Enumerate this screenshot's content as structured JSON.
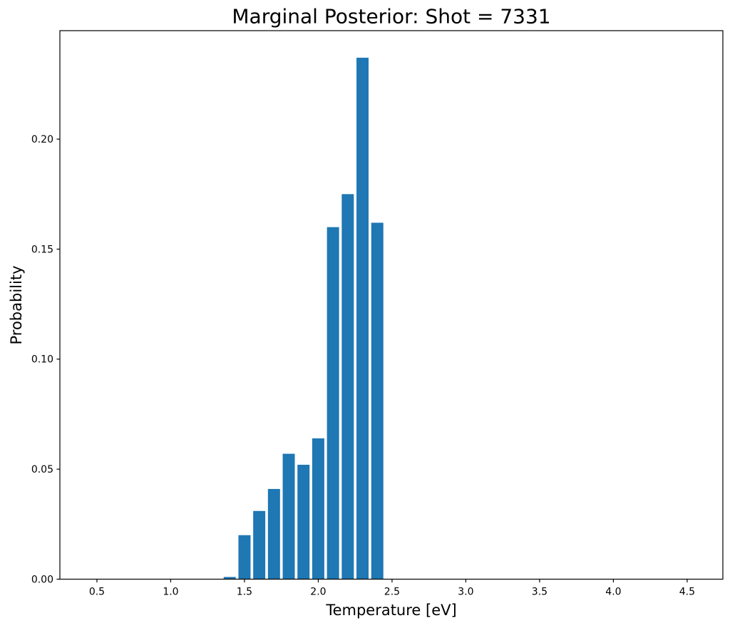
{
  "figure": {
    "background": "#ffffff",
    "text_color": "#000000"
  },
  "chart_data": {
    "type": "bar",
    "title": "Marginal Posterior: Shot = 7331",
    "xlabel": "Temperature [eV]",
    "ylabel": "Probability",
    "x": [
      1.4,
      1.5,
      1.6,
      1.7,
      1.8,
      1.9,
      2.0,
      2.1,
      2.2,
      2.3,
      2.4
    ],
    "values": [
      0.001,
      0.02,
      0.031,
      0.041,
      0.057,
      0.052,
      0.064,
      0.16,
      0.175,
      0.237,
      0.162
    ],
    "bar_width": 0.082,
    "bar_color": "#1f77b4",
    "axis_color": "#000000",
    "xlim": [
      0.249,
      4.742
    ],
    "ylim": [
      0,
      0.2493
    ],
    "xticks": [
      0.5,
      1.0,
      1.5,
      2.0,
      2.5,
      3.0,
      3.5,
      4.0,
      4.5
    ],
    "xtick_labels": [
      "0.5",
      "1.0",
      "1.5",
      "2.0",
      "2.5",
      "3.0",
      "3.5",
      "4.0",
      "4.5"
    ],
    "yticks": [
      0,
      0.05,
      0.1,
      0.15,
      0.2
    ],
    "ytick_labels": [
      "0.00",
      "0.05",
      "0.10",
      "0.15",
      "0.20"
    ],
    "grid": false,
    "legend": "none"
  }
}
